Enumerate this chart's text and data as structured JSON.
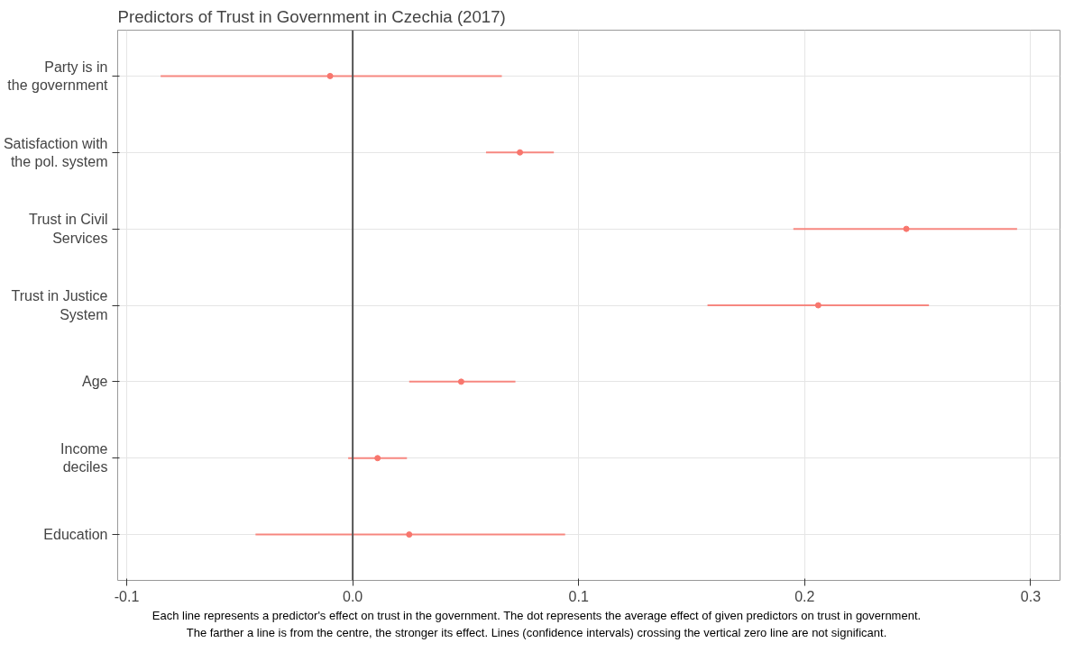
{
  "chart_data": {
    "type": "scatter",
    "orientation": "horizontal",
    "title": "Predictors of Trust in Government in Czechia (2017)",
    "categories": [
      "Party is in\nthe government",
      "Satisfaction with\nthe pol. system",
      "Trust in Civil\nServices",
      "Trust in Justice\nSystem",
      "Age",
      "Income\ndeciles",
      "Education"
    ],
    "values": [
      -0.01,
      0.074,
      0.245,
      0.206,
      0.048,
      0.011,
      0.025
    ],
    "errors": [
      [
        -0.085,
        0.066
      ],
      [
        0.059,
        0.089
      ],
      [
        0.195,
        0.294
      ],
      [
        0.157,
        0.255
      ],
      [
        0.025,
        0.072
      ],
      [
        -0.002,
        0.024
      ],
      [
        -0.043,
        0.094
      ]
    ],
    "color": "#f8766d",
    "marker": "circle",
    "grid": true,
    "xlim": [
      -0.104,
      0.313
    ],
    "xticks": [
      -0.1,
      {
        "value": 0,
        "label": "0.0"
      },
      0.1,
      0.2,
      0.3
    ],
    "ref_lines": [
      {
        "axis": "x",
        "value": 0,
        "color": "#555555"
      }
    ],
    "annotations": [
      "Each line represents a predictor's effect on trust in the government. The dot represents the average effect of given predictors on trust in government.\nThe farther a line is from the centre, the stronger its effect. Lines (confidence intervals) crossing the vertical zero line are not significant."
    ]
  }
}
